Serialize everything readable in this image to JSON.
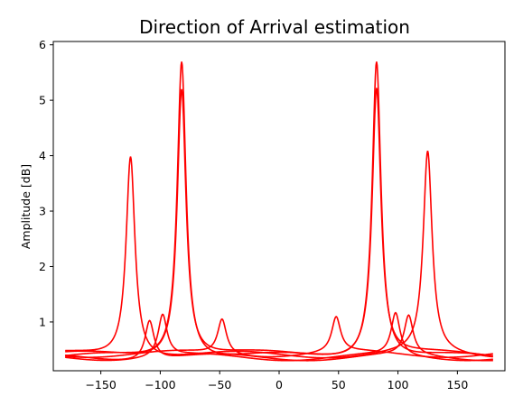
{
  "chart_data": {
    "type": "line",
    "title": "Direction of Arrival estimation",
    "xlabel": "",
    "ylabel": "Amplitude [dB]",
    "xlim": [
      -190,
      190
    ],
    "ylim": [
      0.12,
      6.06
    ],
    "xticks": [
      -150,
      -100,
      -50,
      0,
      50,
      100,
      150
    ],
    "yticks": [
      1,
      2,
      3,
      4,
      5,
      6
    ],
    "grid": false,
    "color": "#ff0000",
    "series": [
      {
        "peaks": [
          [
            -82,
            5.75
          ],
          [
            82,
            5.75
          ]
        ],
        "baseline": 0.36
      },
      {
        "peaks": [
          [
            -82,
            5.25
          ],
          [
            82,
            5.25
          ]
        ],
        "baseline": 0.4
      },
      {
        "peaks": [
          [
            -125,
            4.03
          ],
          [
            125,
            4.03
          ]
        ],
        "baseline": 0.4
      },
      {
        "peaks": [
          [
            -109,
            1.07
          ],
          [
            109,
            1.07
          ]
        ],
        "baseline": 0.36
      },
      {
        "peaks": [
          [
            -98,
            1.12
          ],
          [
            98,
            1.12
          ]
        ],
        "baseline": 0.36
      },
      {
        "peaks": [
          [
            -48,
            1.05
          ],
          [
            48,
            1.05
          ]
        ],
        "baseline": 0.42
      }
    ]
  }
}
